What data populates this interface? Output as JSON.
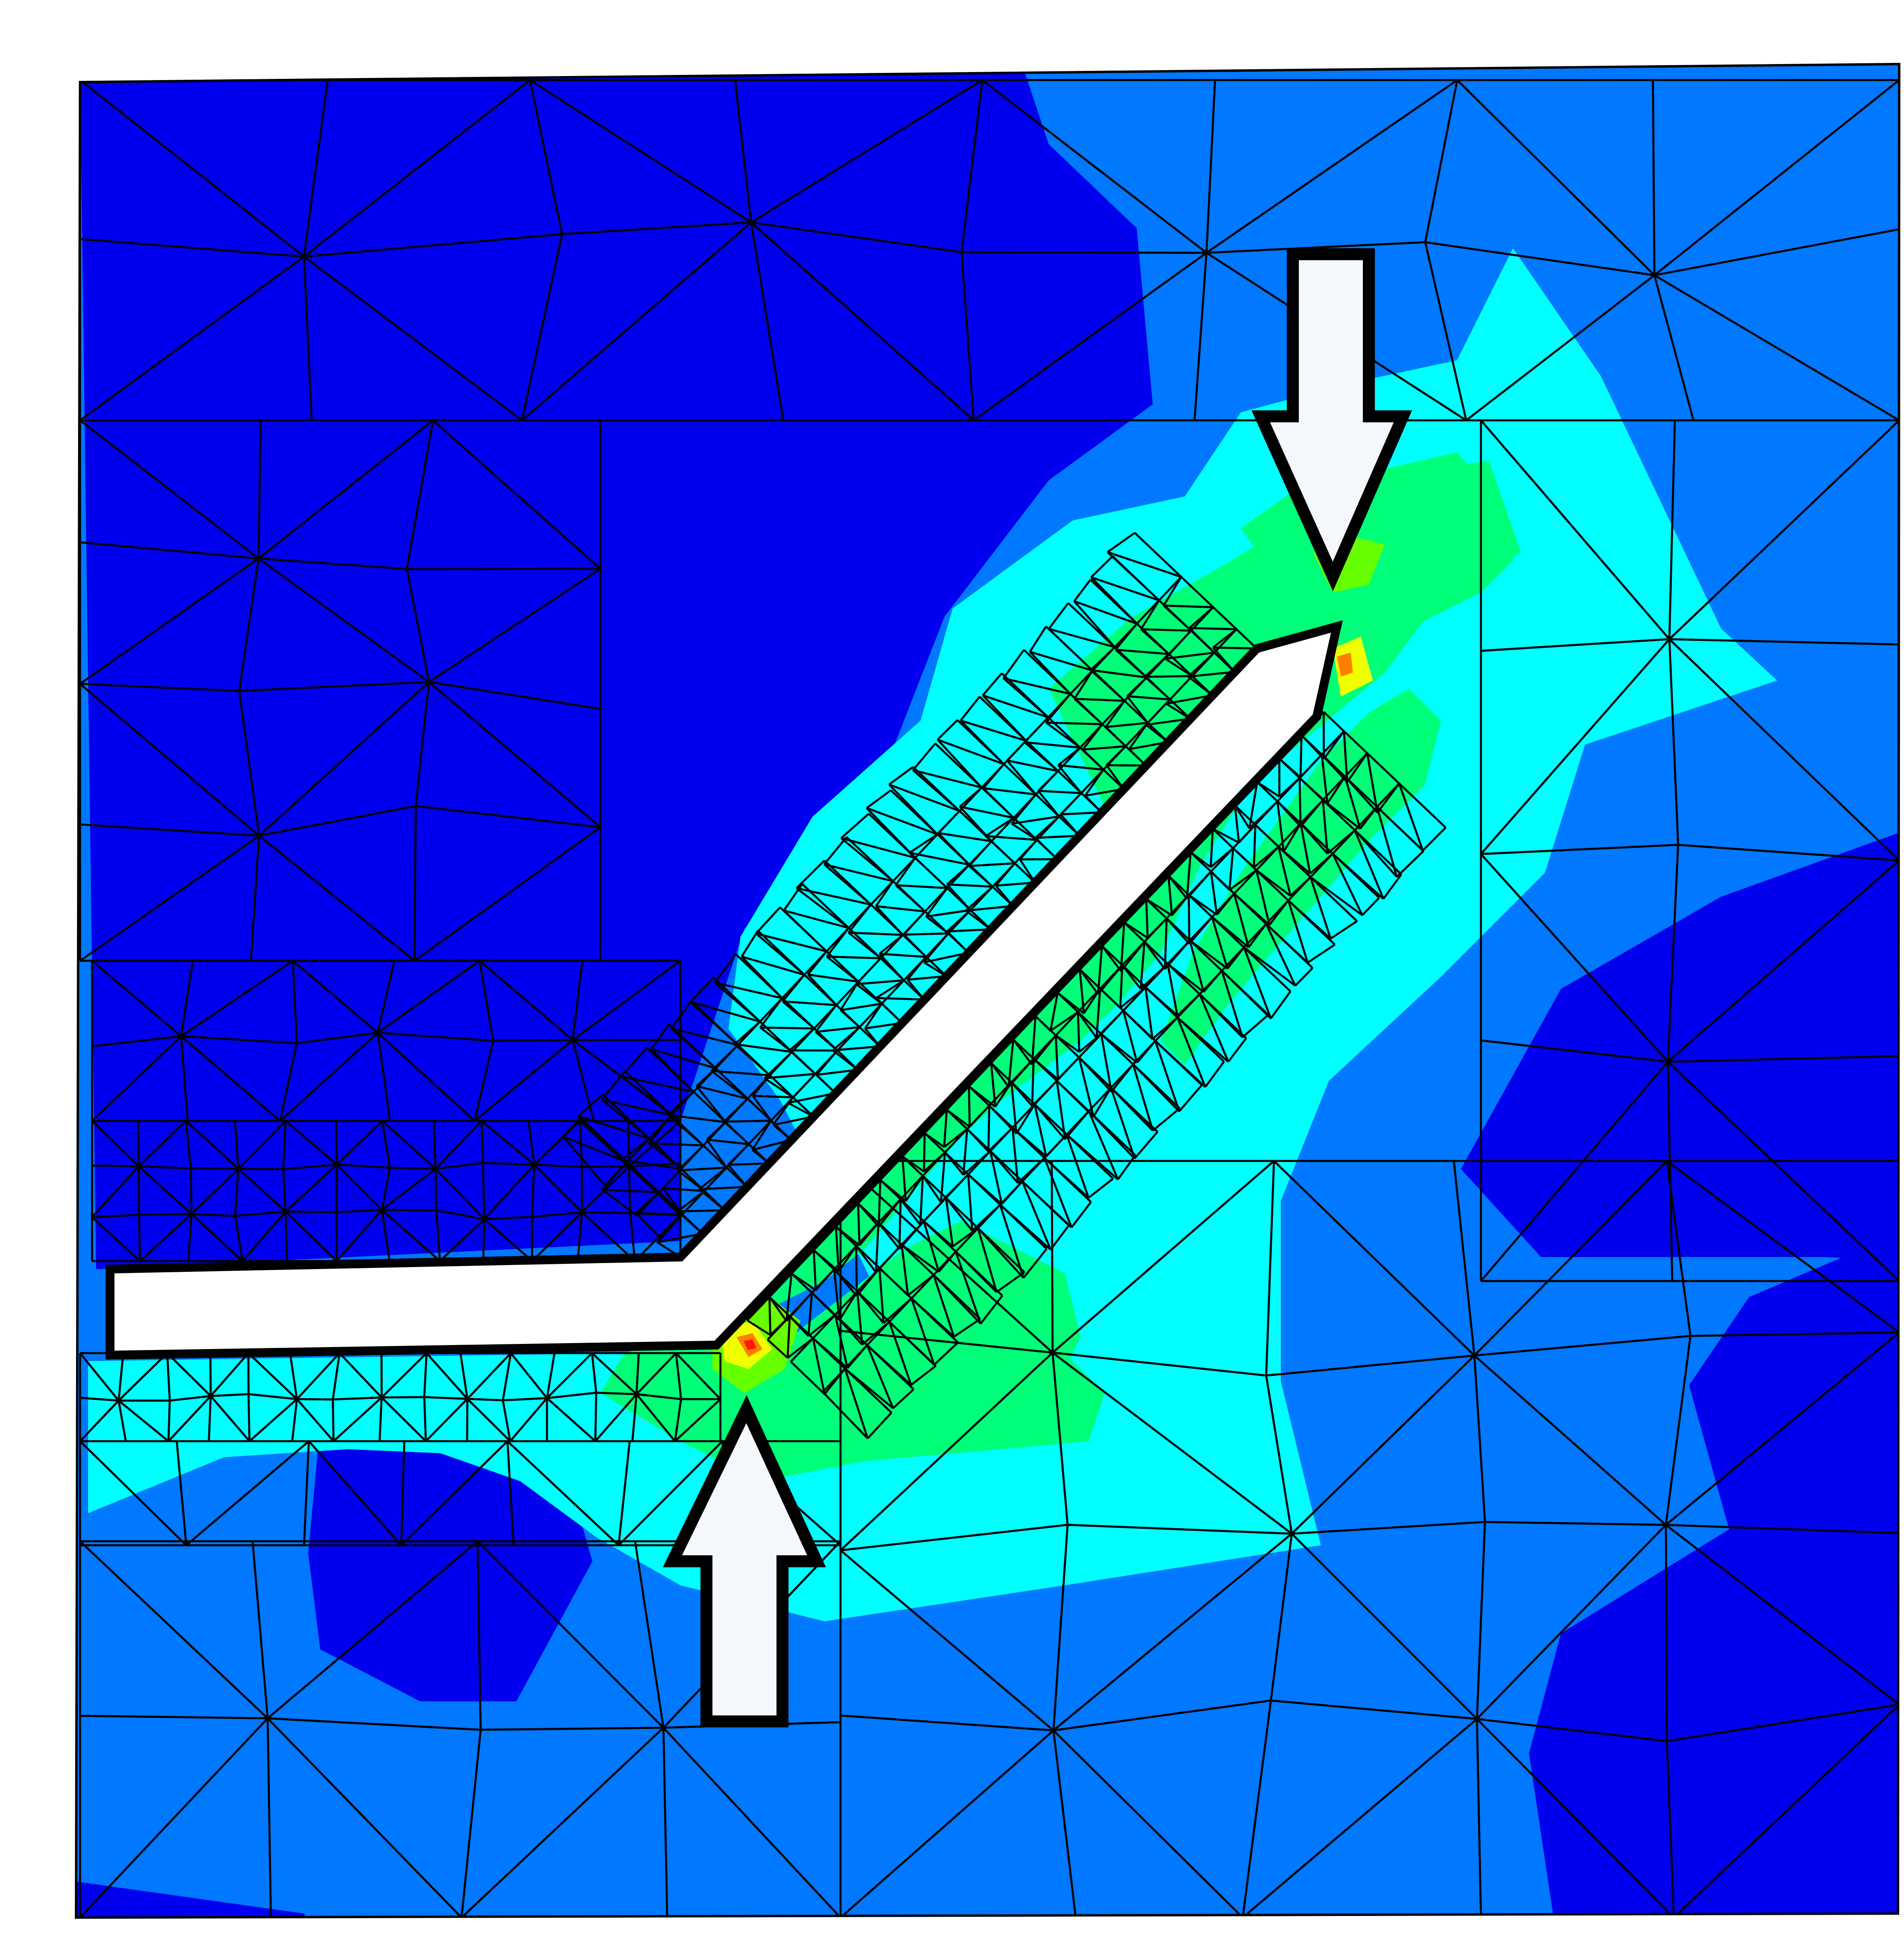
{
  "figure": {
    "description_visible_text": "",
    "colors": {
      "background": "#ffffff",
      "band_0_deep_blue": "#0000ee",
      "band_1_blue": "#0078ff",
      "band_2_cyan": "#00ffff",
      "band_3_green": "#00ff78",
      "band_4_lime": "#66ff00",
      "band_5_yellow": "#f0ff00",
      "band_6_orange": "#ff8000",
      "band_7_red": "#ff1a00",
      "mesh_lines": "#000000",
      "crack": "#ffffff",
      "arrow_fill": "#f4f8fc",
      "arrow_outline": "#000000"
    },
    "arrows": [
      {
        "name": "load-arrow-top",
        "direction": "down"
      },
      {
        "name": "load-arrow-bottom",
        "direction": "up"
      }
    ],
    "icons": [
      "down-arrow-icon",
      "up-arrow-icon"
    ]
  }
}
